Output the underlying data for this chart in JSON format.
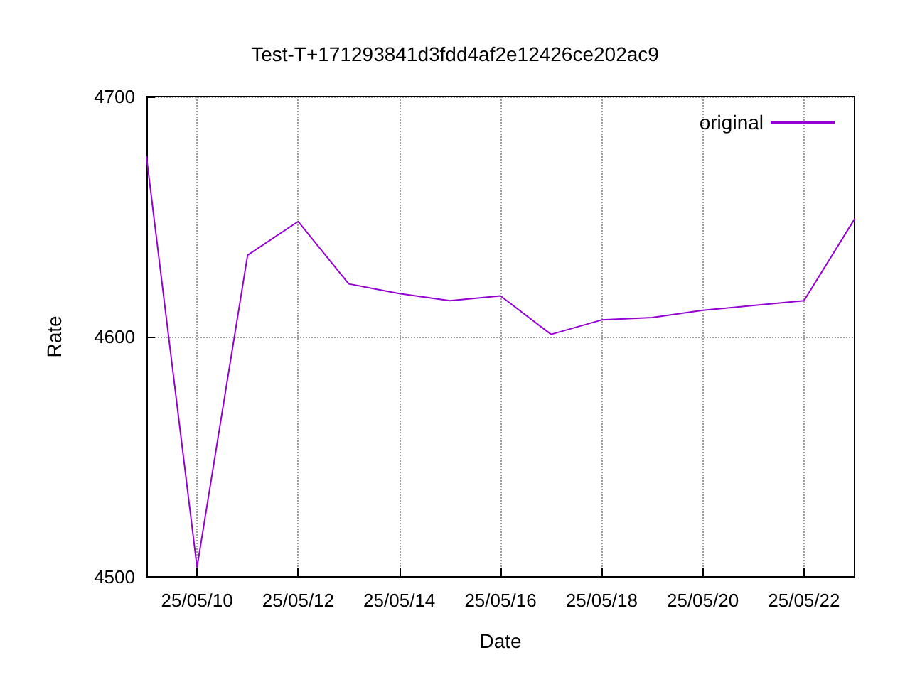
{
  "chart_data": {
    "type": "line",
    "title": "Test-T+171293841d3fdd4af2e12426ce202ac9",
    "xlabel": "Date",
    "ylabel": "Rate",
    "x": [
      "--05-09",
      "--05-10",
      "--05-11",
      "--05-12",
      "--05-13",
      "--05-14",
      "--05-15",
      "--05-16",
      "--05-17",
      "--05-18",
      "--05-19",
      "--05-20",
      "--05-21",
      "--05-22",
      "--05-23"
    ],
    "series": [
      {
        "name": "original",
        "color": "#9400d3",
        "values": [
          4675,
          4504,
          4634,
          4648,
          4622,
          4618,
          4615,
          4617,
          4601,
          4607,
          4608,
          4611,
          4613,
          4615,
          4649
        ]
      }
    ],
    "xlim": [
      "--05-09",
      "--05-23"
    ],
    "xticks": [
      {
        "value": "--05-10",
        "label": "25/05/10"
      },
      {
        "value": "--05-12",
        "label": "25/05/12"
      },
      {
        "value": "--05-14",
        "label": "25/05/14"
      },
      {
        "value": "--05-16",
        "label": "25/05/16"
      },
      {
        "value": "--05-18",
        "label": "25/05/18"
      },
      {
        "value": "--05-20",
        "label": "25/05/20"
      },
      {
        "value": "--05-22",
        "label": "25/05/22"
      }
    ],
    "ylim": [
      4500,
      4700
    ],
    "yticks": [
      4500,
      4600,
      4700
    ],
    "grid": true,
    "legend": "top right",
    "marker": "none",
    "line_style": "solid"
  }
}
